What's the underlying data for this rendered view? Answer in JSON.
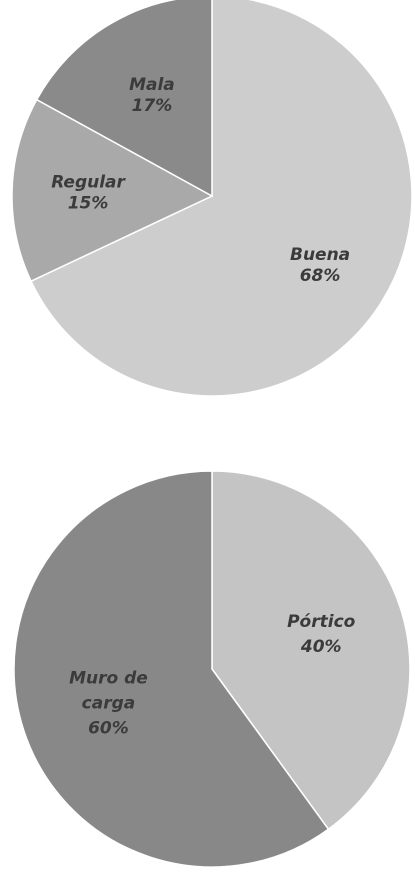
{
  "chart_data": [
    {
      "type": "pie",
      "categories": [
        "Buena",
        "Regular",
        "Mala"
      ],
      "values": [
        68,
        15,
        17
      ],
      "value_labels": [
        "68%",
        "15%",
        "17%"
      ],
      "colors": [
        "#cdcdcd",
        "#a9a9a9",
        "#8a8a8a"
      ],
      "start": "12 o'clock",
      "direction": "clockwise",
      "legend": "none"
    },
    {
      "type": "pie",
      "categories": [
        "Pórtico",
        "Muro de carga"
      ],
      "values": [
        40,
        60
      ],
      "value_labels": [
        "40%",
        "60%"
      ],
      "category_label_lines": [
        [
          "Pórtico"
        ],
        [
          "Muro de",
          "carga"
        ]
      ],
      "colors": [
        "#c4c4c4",
        "#888888"
      ],
      "start": "12 o'clock",
      "direction": "clockwise",
      "legend": "none"
    }
  ]
}
